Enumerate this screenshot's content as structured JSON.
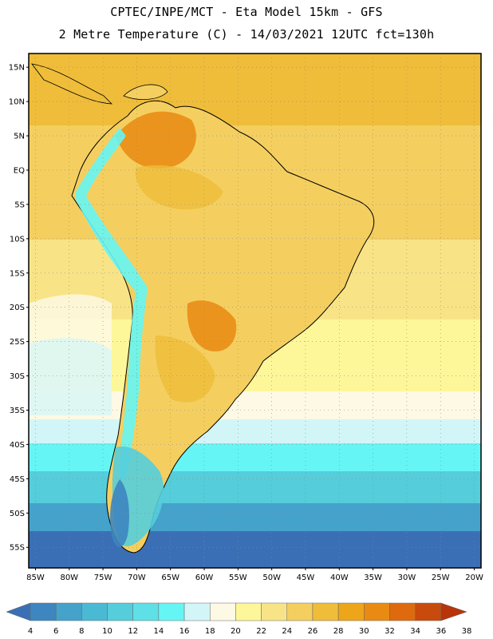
{
  "header": {
    "line1": "CPTEC/INPE/MCT -  Eta Model 15km - GFS",
    "line2": "2 Metre Temperature (C) - 14/03/2021 12UTC fct=130h"
  },
  "map": {
    "lat_labels": [
      "15N",
      "10N",
      "5N",
      "EQ",
      "5S",
      "10S",
      "15S",
      "20S",
      "25S",
      "30S",
      "35S",
      "40S",
      "45S",
      "50S",
      "55S"
    ],
    "lon_labels": [
      "85W",
      "80W",
      "75W",
      "70W",
      "65W",
      "60W",
      "55W",
      "50W",
      "45W",
      "40W",
      "35W",
      "30W",
      "25W",
      "20W"
    ],
    "lon_range": [
      -86,
      -19
    ],
    "lat_range": [
      17,
      -58
    ]
  },
  "colorbar": {
    "labels": [
      "4",
      "6",
      "8",
      "10",
      "12",
      "14",
      "16",
      "18",
      "20",
      "22",
      "24",
      "26",
      "28",
      "30",
      "32",
      "34",
      "36",
      "38"
    ],
    "colors": [
      "#3a6fb5",
      "#3d86c0",
      "#45a2cb",
      "#4ab9d4",
      "#55cddb",
      "#5ee0e6",
      "#66f5f5",
      "#d2f6f8",
      "#fdf9e4",
      "#fdf79a",
      "#f8e487",
      "#f4cf60",
      "#efbd3a",
      "#eda51a",
      "#e98a12",
      "#de6a0d",
      "#c84a0c",
      "#b73509"
    ]
  }
}
